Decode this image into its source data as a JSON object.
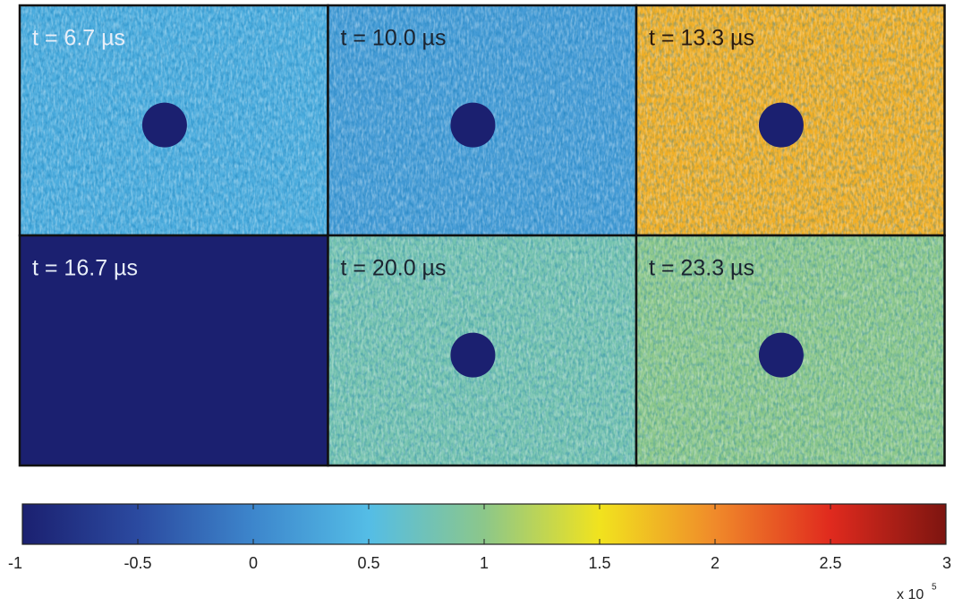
{
  "chart_data": {
    "type": "heatmap",
    "panels": [
      {
        "label": "t = 6.7 µs",
        "mean": 0.35,
        "text_color": "#e8eef8"
      },
      {
        "label": "t = 10.0 µs",
        "mean": 0.2,
        "text_color": "#1c2430"
      },
      {
        "label": "t = 13.3 µs",
        "mean": 1.8,
        "text_color": "#2a1a10"
      },
      {
        "label": "t = 16.7 µs",
        "mean": -1,
        "text_color": "#e8eef8"
      },
      {
        "label": "t = 20.0 µs",
        "mean": 0.8,
        "text_color": "#1c2430"
      },
      {
        "label": "t = 23.3 µs",
        "mean": 1.0,
        "text_color": "#1c2430"
      }
    ],
    "clim": [
      -1,
      3
    ],
    "cticks": [
      -1,
      -0.5,
      0,
      0.5,
      1,
      1.5,
      2,
      2.5,
      3
    ],
    "colormap": [
      "#1b2070",
      "#2b4aa0",
      "#3d86cc",
      "#54bde6",
      "#8cc78a",
      "#f1e31e",
      "#f08a2a",
      "#e02a1e",
      "#7d1510"
    ],
    "hole_color": "#1b2070",
    "multiplier": "x 10",
    "exponent": "5"
  }
}
